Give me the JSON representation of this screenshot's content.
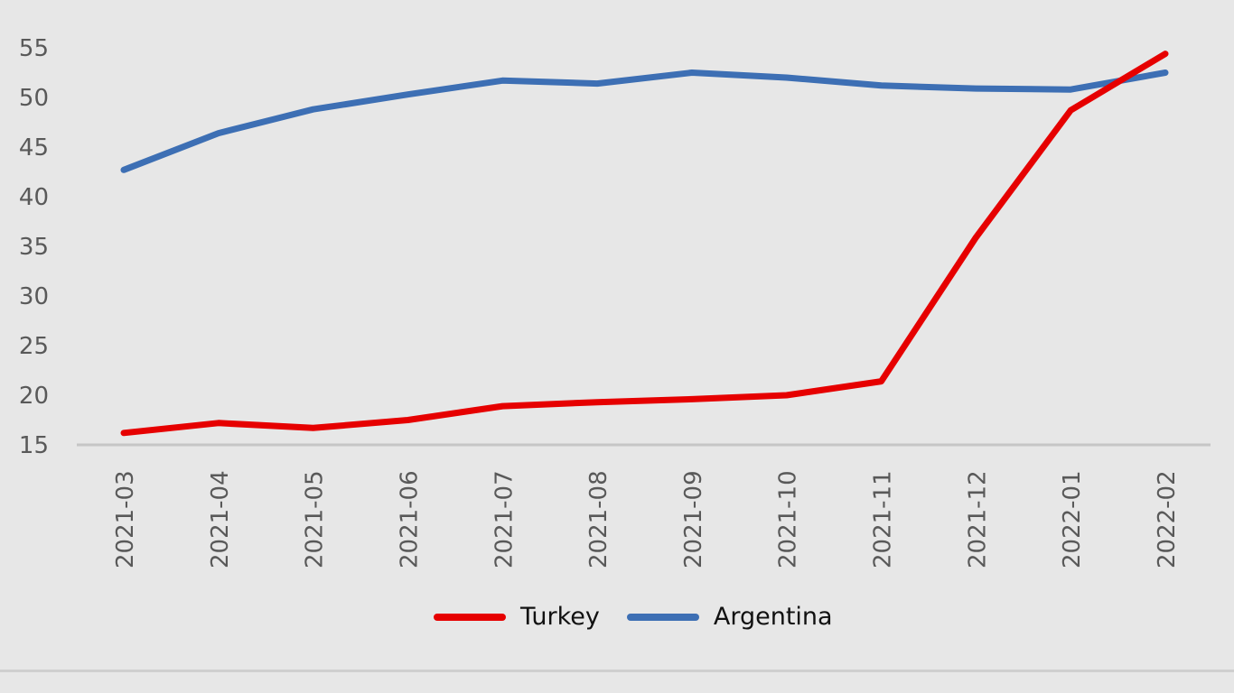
{
  "chart_data": {
    "type": "line",
    "title": "",
    "xlabel": "",
    "ylabel": "",
    "ylim": [
      15,
      55
    ],
    "yticks": [
      15,
      20,
      25,
      30,
      35,
      40,
      45,
      50,
      55
    ],
    "grid": false,
    "legend_position": "bottom",
    "categories": [
      "2021-03",
      "2021-04",
      "2021-05",
      "2021-06",
      "2021-07",
      "2021-08",
      "2021-09",
      "2021-10",
      "2021-11",
      "2021-12",
      "2022-01",
      "2022-02"
    ],
    "series": [
      {
        "name": "Turkey",
        "color": "#e60000",
        "values": [
          16.2,
          17.2,
          16.7,
          17.5,
          18.9,
          19.3,
          19.6,
          20.0,
          21.4,
          35.9,
          48.7,
          54.4
        ]
      },
      {
        "name": "Argentina",
        "color": "#3d6fb4",
        "values": [
          42.7,
          46.4,
          48.8,
          50.3,
          51.7,
          51.4,
          52.5,
          52.0,
          51.2,
          50.9,
          50.8,
          52.5
        ]
      }
    ]
  },
  "legend": {
    "items": [
      {
        "label": "Turkey",
        "color": "#e60000"
      },
      {
        "label": "Argentina",
        "color": "#3d6fb4"
      }
    ]
  }
}
